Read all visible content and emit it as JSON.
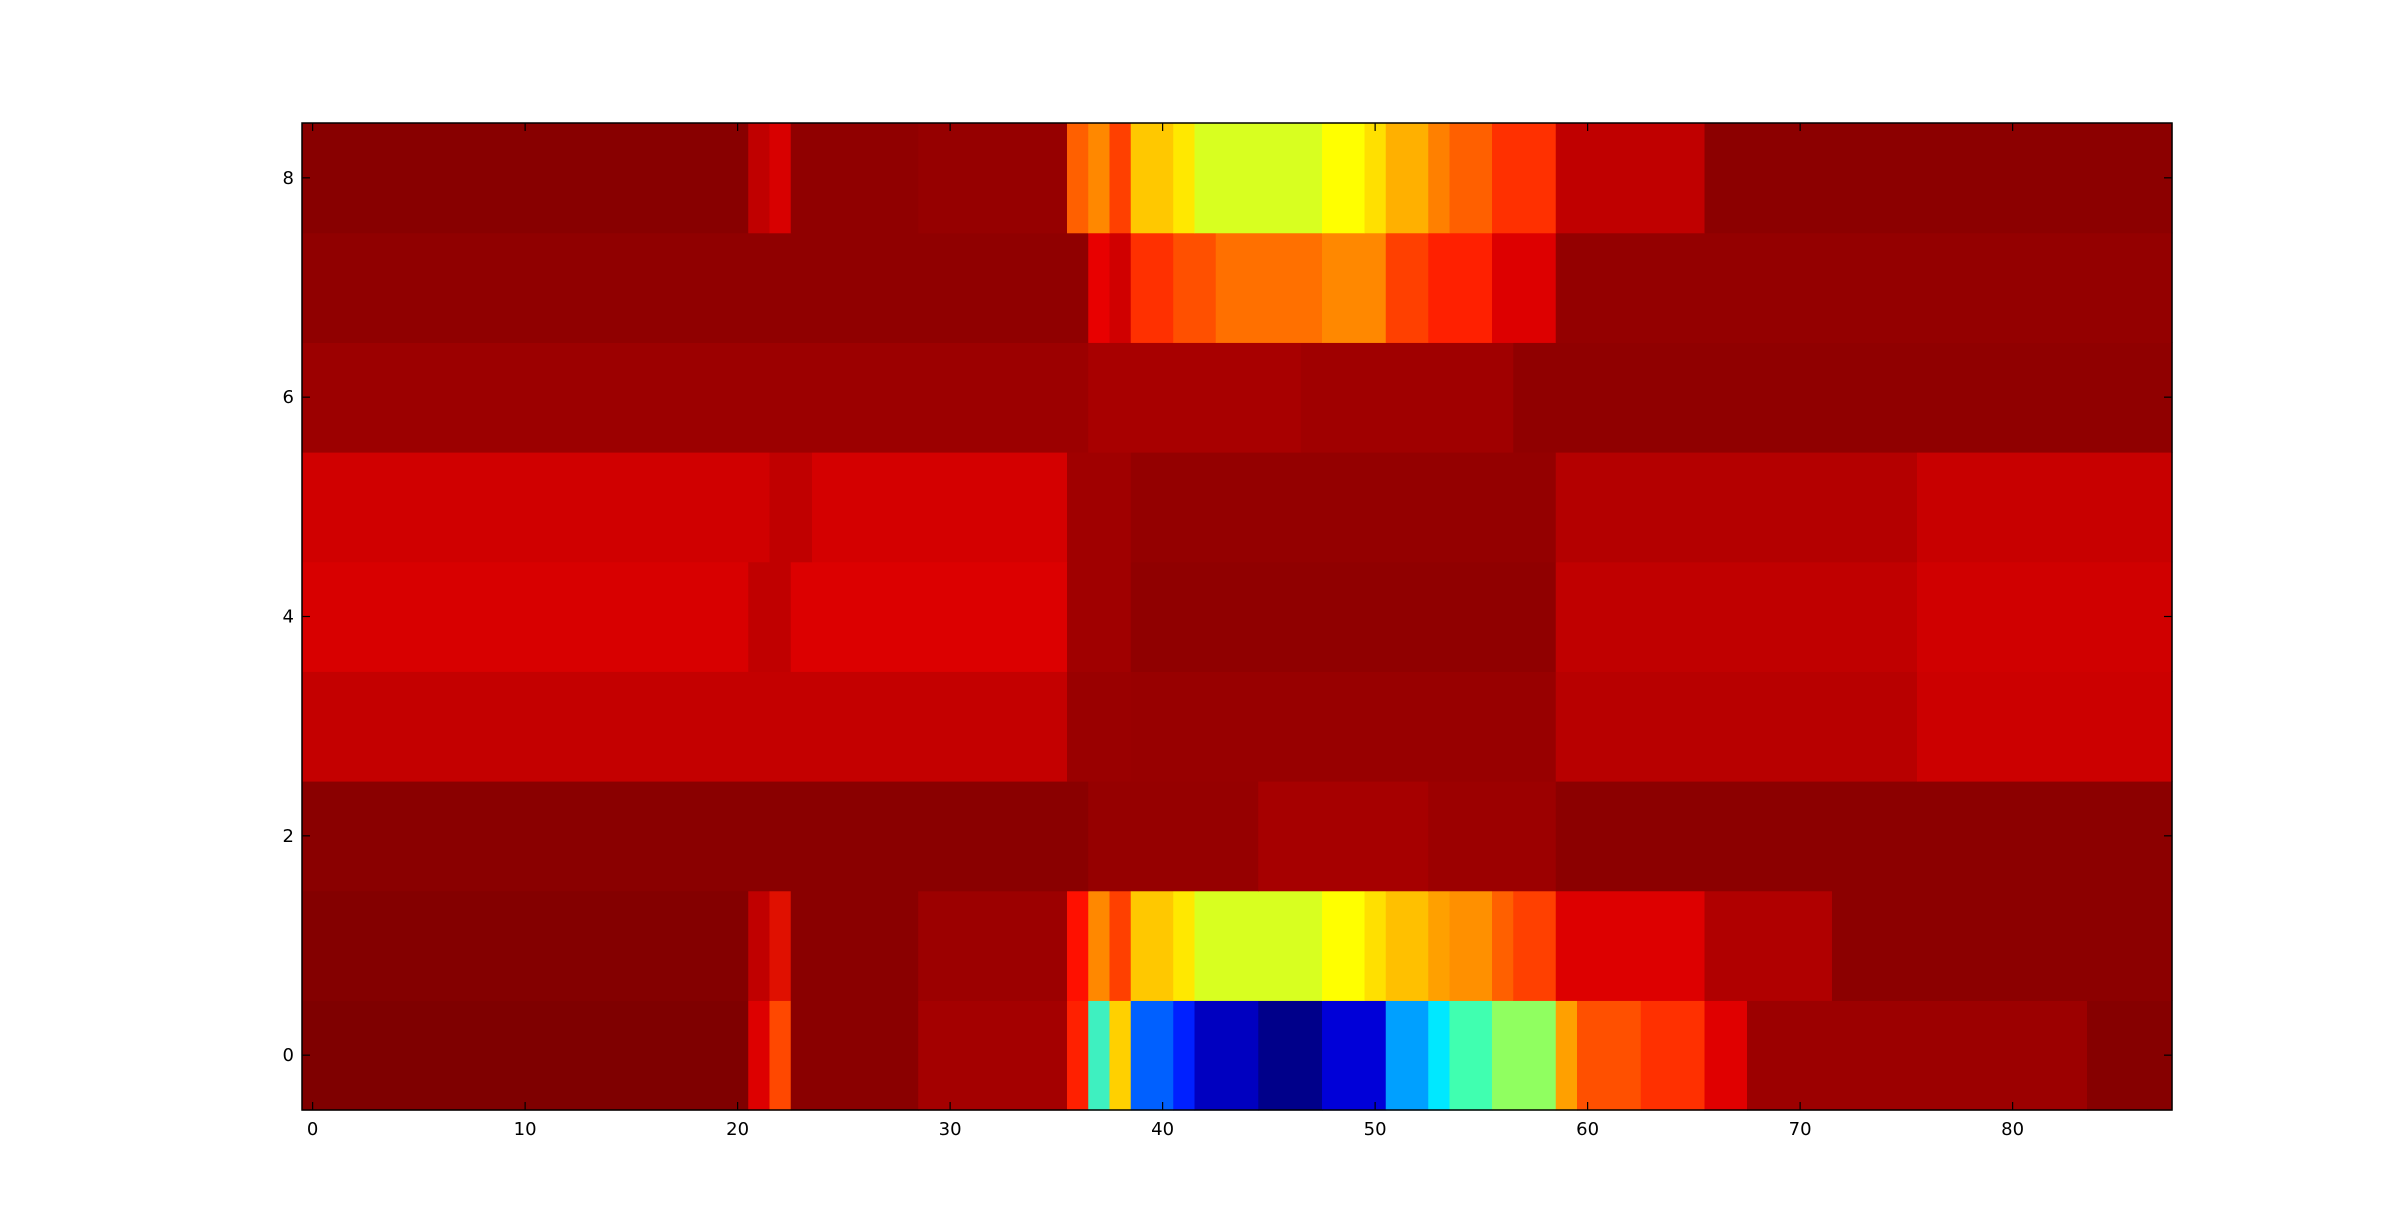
{
  "chart_data": {
    "type": "heatmap",
    "colormap": "jet",
    "x_ticks": [
      0,
      10,
      20,
      30,
      40,
      50,
      60,
      70,
      80
    ],
    "y_ticks": [
      0,
      2,
      4,
      6,
      8
    ],
    "xlim": [
      -0.5,
      87.5
    ],
    "ylim": [
      -0.5,
      8.5
    ],
    "n_cols": 88,
    "n_rows": 9,
    "grid": false,
    "row_segments": [
      {
        "row": 0,
        "segments": [
          {
            "x": [
              0,
              20
            ],
            "color": "#7f0000"
          },
          {
            "x": [
              21,
              21
            ],
            "color": "#dd0000"
          },
          {
            "x": [
              22,
              22
            ],
            "color": "#ff4800"
          },
          {
            "x": [
              23,
              28
            ],
            "color": "#8a0000"
          },
          {
            "x": [
              29,
              35
            ],
            "color": "#a40000"
          },
          {
            "x": [
              36,
              36
            ],
            "color": "#ff2000"
          },
          {
            "x": [
              37,
              37
            ],
            "color": "#3ef0c0"
          },
          {
            "x": [
              38,
              38
            ],
            "color": "#ffd000"
          },
          {
            "x": [
              39,
              40
            ],
            "color": "#0060ff"
          },
          {
            "x": [
              41,
              41
            ],
            "color": "#0020ff"
          },
          {
            "x": [
              42,
              44
            ],
            "color": "#0000c0"
          },
          {
            "x": [
              45,
              47
            ],
            "color": "#00008a"
          },
          {
            "x": [
              48,
              50
            ],
            "color": "#0000d8"
          },
          {
            "x": [
              51,
              52
            ],
            "color": "#00a0ff"
          },
          {
            "x": [
              53,
              53
            ],
            "color": "#00e8ff"
          },
          {
            "x": [
              54,
              55
            ],
            "color": "#40ffb0"
          },
          {
            "x": [
              56,
              58
            ],
            "color": "#90ff60"
          },
          {
            "x": [
              59,
              59
            ],
            "color": "#ffa000"
          },
          {
            "x": [
              60,
              62
            ],
            "color": "#ff5000"
          },
          {
            "x": [
              63,
              65
            ],
            "color": "#ff3000"
          },
          {
            "x": [
              66,
              67
            ],
            "color": "#e00000"
          },
          {
            "x": [
              68,
              83
            ],
            "color": "#9c0000"
          },
          {
            "x": [
              84,
              87
            ],
            "color": "#860000"
          }
        ]
      },
      {
        "row": 1,
        "segments": [
          {
            "x": [
              0,
              20
            ],
            "color": "#840000"
          },
          {
            "x": [
              21,
              21
            ],
            "color": "#c00000"
          },
          {
            "x": [
              22,
              22
            ],
            "color": "#e01000"
          },
          {
            "x": [
              23,
              28
            ],
            "color": "#8a0000"
          },
          {
            "x": [
              29,
              35
            ],
            "color": "#9c0000"
          },
          {
            "x": [
              36,
              36
            ],
            "color": "#ff1000"
          },
          {
            "x": [
              37,
              37
            ],
            "color": "#ff8800"
          },
          {
            "x": [
              38,
              38
            ],
            "color": "#ff4000"
          },
          {
            "x": [
              39,
              40
            ],
            "color": "#ffc800"
          },
          {
            "x": [
              41,
              41
            ],
            "color": "#ffe800"
          },
          {
            "x": [
              42,
              47
            ],
            "color": "#d8ff20"
          },
          {
            "x": [
              48,
              49
            ],
            "color": "#ffff00"
          },
          {
            "x": [
              50,
              50
            ],
            "color": "#ffe000"
          },
          {
            "x": [
              51,
              52
            ],
            "color": "#ffc000"
          },
          {
            "x": [
              53,
              53
            ],
            "color": "#ffa000"
          },
          {
            "x": [
              54,
              55
            ],
            "color": "#ff9000"
          },
          {
            "x": [
              56,
              56
            ],
            "color": "#ff6000"
          },
          {
            "x": [
              57,
              58
            ],
            "color": "#ff4000"
          },
          {
            "x": [
              59,
              65
            ],
            "color": "#dd0000"
          },
          {
            "x": [
              66,
              71
            ],
            "color": "#b00000"
          },
          {
            "x": [
              72,
              87
            ],
            "color": "#8c0000"
          }
        ]
      },
      {
        "row": 2,
        "segments": [
          {
            "x": [
              0,
              36
            ],
            "color": "#8a0000"
          },
          {
            "x": [
              37,
              44
            ],
            "color": "#960000"
          },
          {
            "x": [
              45,
              52
            ],
            "color": "#a60000"
          },
          {
            "x": [
              53,
              58
            ],
            "color": "#9c0000"
          },
          {
            "x": [
              59,
              87
            ],
            "color": "#8c0000"
          }
        ]
      },
      {
        "row": 3,
        "segments": [
          {
            "x": [
              0,
              35
            ],
            "color": "#c40000"
          },
          {
            "x": [
              36,
              38
            ],
            "color": "#9a0000"
          },
          {
            "x": [
              39,
              58
            ],
            "color": "#980000"
          },
          {
            "x": [
              59,
              75
            ],
            "color": "#b80000"
          },
          {
            "x": [
              76,
              87
            ],
            "color": "#cc0000"
          }
        ]
      },
      {
        "row": 4,
        "segments": [
          {
            "x": [
              0,
              20
            ],
            "color": "#d80000"
          },
          {
            "x": [
              21,
              22
            ],
            "color": "#c00000"
          },
          {
            "x": [
              23,
              35
            ],
            "color": "#dc0000"
          },
          {
            "x": [
              36,
              38
            ],
            "color": "#a00000"
          },
          {
            "x": [
              39,
              58
            ],
            "color": "#900000"
          },
          {
            "x": [
              59,
              75
            ],
            "color": "#c00000"
          },
          {
            "x": [
              76,
              87
            ],
            "color": "#d00000"
          }
        ]
      },
      {
        "row": 5,
        "segments": [
          {
            "x": [
              0,
              21
            ],
            "color": "#d00000"
          },
          {
            "x": [
              22,
              23
            ],
            "color": "#c00000"
          },
          {
            "x": [
              24,
              35
            ],
            "color": "#d40000"
          },
          {
            "x": [
              36,
              38
            ],
            "color": "#a00000"
          },
          {
            "x": [
              39,
              58
            ],
            "color": "#940000"
          },
          {
            "x": [
              59,
              75
            ],
            "color": "#b40000"
          },
          {
            "x": [
              76,
              87
            ],
            "color": "#c80000"
          }
        ]
      },
      {
        "row": 6,
        "segments": [
          {
            "x": [
              0,
              36
            ],
            "color": "#9c0000"
          },
          {
            "x": [
              37,
              46
            ],
            "color": "#a80000"
          },
          {
            "x": [
              47,
              56
            ],
            "color": "#a00000"
          },
          {
            "x": [
              57,
              87
            ],
            "color": "#900000"
          }
        ]
      },
      {
        "row": 7,
        "segments": [
          {
            "x": [
              0,
              36
            ],
            "color": "#900000"
          },
          {
            "x": [
              37,
              37
            ],
            "color": "#e80000"
          },
          {
            "x": [
              38,
              38
            ],
            "color": "#d00000"
          },
          {
            "x": [
              39,
              40
            ],
            "color": "#ff3000"
          },
          {
            "x": [
              41,
              42
            ],
            "color": "#ff5000"
          },
          {
            "x": [
              43,
              47
            ],
            "color": "#ff7000"
          },
          {
            "x": [
              48,
              50
            ],
            "color": "#ff8800"
          },
          {
            "x": [
              51,
              52
            ],
            "color": "#ff4000"
          },
          {
            "x": [
              53,
              55
            ],
            "color": "#ff2000"
          },
          {
            "x": [
              56,
              58
            ],
            "color": "#dd0000"
          },
          {
            "x": [
              59,
              87
            ],
            "color": "#940000"
          }
        ]
      },
      {
        "row": 8,
        "segments": [
          {
            "x": [
              0,
              20
            ],
            "color": "#880000"
          },
          {
            "x": [
              21,
              21
            ],
            "color": "#c00000"
          },
          {
            "x": [
              22,
              22
            ],
            "color": "#d80000"
          },
          {
            "x": [
              23,
              28
            ],
            "color": "#900000"
          },
          {
            "x": [
              29,
              35
            ],
            "color": "#960000"
          },
          {
            "x": [
              36,
              36
            ],
            "color": "#ff6000"
          },
          {
            "x": [
              37,
              37
            ],
            "color": "#ff8800"
          },
          {
            "x": [
              38,
              38
            ],
            "color": "#ff4000"
          },
          {
            "x": [
              39,
              40
            ],
            "color": "#ffc800"
          },
          {
            "x": [
              41,
              41
            ],
            "color": "#ffe800"
          },
          {
            "x": [
              42,
              47
            ],
            "color": "#d8ff20"
          },
          {
            "x": [
              48,
              49
            ],
            "color": "#ffff00"
          },
          {
            "x": [
              50,
              50
            ],
            "color": "#ffe000"
          },
          {
            "x": [
              51,
              52
            ],
            "color": "#ffb000"
          },
          {
            "x": [
              53,
              53
            ],
            "color": "#ff8000"
          },
          {
            "x": [
              54,
              55
            ],
            "color": "#ff6000"
          },
          {
            "x": [
              56,
              58
            ],
            "color": "#ff3000"
          },
          {
            "x": [
              59,
              65
            ],
            "color": "#c00000"
          },
          {
            "x": [
              66,
              87
            ],
            "color": "#8c0000"
          }
        ]
      }
    ]
  }
}
